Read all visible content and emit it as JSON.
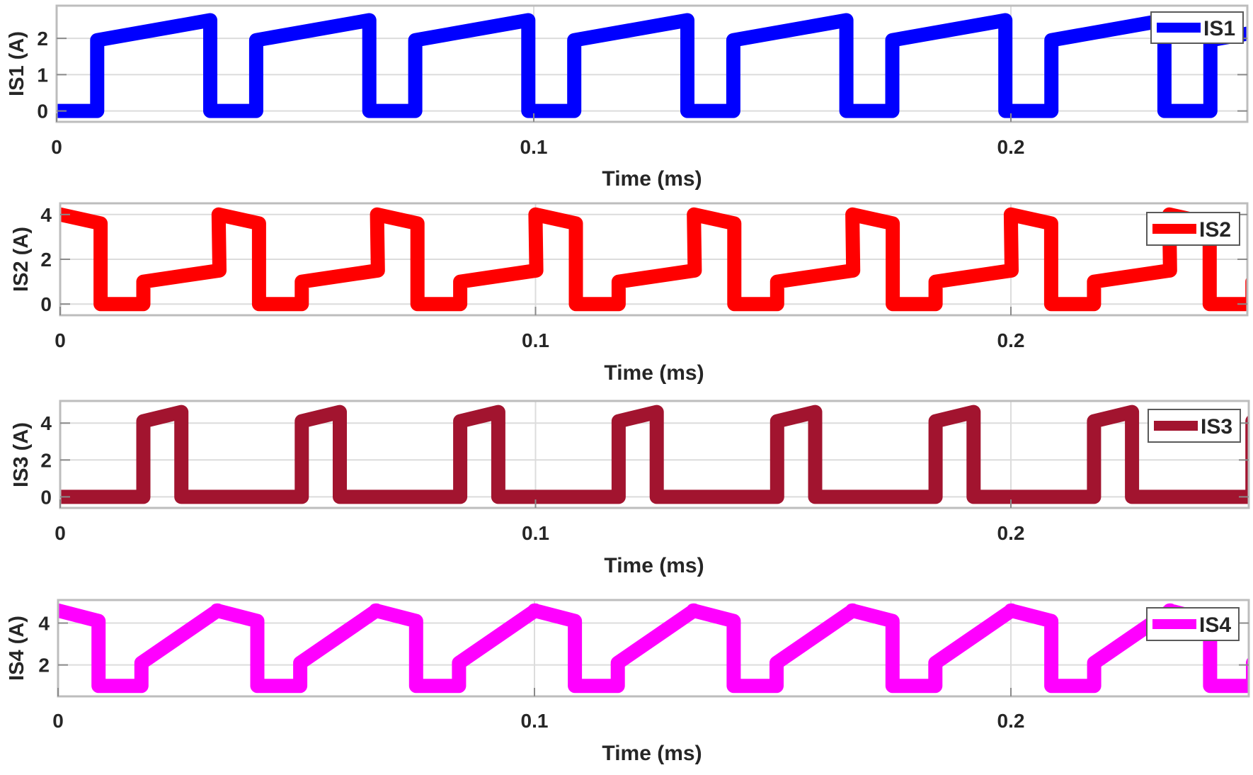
{
  "chart_data": [
    {
      "type": "line",
      "id": "is1",
      "title": "",
      "xlabel": "Time (ms)",
      "ylabel": "IS1 (A)",
      "legend": [
        "IS1"
      ],
      "legend_position": "northeast",
      "grid": true,
      "color": "#0000ff",
      "xlim": [
        0,
        0.25
      ],
      "ylim": [
        -0.3,
        2.9
      ],
      "xticks": [
        0,
        0.1,
        0.2
      ],
      "xtick_labels": [
        "0",
        "0.1",
        "0.2"
      ],
      "yticks": [
        0,
        1,
        2
      ],
      "ytick_labels": [
        "0",
        "1",
        "2"
      ],
      "period_ms": 0.03333,
      "waveform_one_period": {
        "t": [
          0,
          0.0085,
          0.0085,
          0.0322,
          0.0322,
          0.03333
        ],
        "y": [
          0,
          0,
          1.95,
          2.5,
          0,
          0
        ]
      },
      "series": [
        {
          "name": "IS1",
          "description": "Rectangular pulse: 0 A off-state, rises to ~2 A and ramps to ~2.5 A during conduction, 3 cycles per 0.1 ms"
        }
      ]
    },
    {
      "type": "line",
      "id": "is2",
      "title": "",
      "xlabel": "Time (ms)",
      "ylabel": "IS2 (A)",
      "legend": [
        "IS2"
      ],
      "legend_position": "northeast",
      "grid": true,
      "color": "#ff0000",
      "xlim": [
        0,
        0.25
      ],
      "ylim": [
        -0.5,
        4.5
      ],
      "xticks": [
        0,
        0.1,
        0.2
      ],
      "xtick_labels": [
        "0",
        "0.1",
        "0.2"
      ],
      "yticks": [
        0,
        2,
        4
      ],
      "ytick_labels": [
        "0",
        "2",
        "4"
      ],
      "period_ms": 0.03333,
      "waveform_one_period": {
        "t": [
          0,
          0.0085,
          0.0085,
          0.0175,
          0.0175,
          0.0335
        ],
        "y": [
          4.0,
          3.6,
          0,
          0,
          1.0,
          1.5
        ]
      },
      "series": [
        {
          "name": "IS2",
          "description": "Peak ~4 A falling to ~3.6 A, drops to 0, then steps to ~1 A ramping to ~1.5 A"
        }
      ]
    },
    {
      "type": "line",
      "id": "is3",
      "title": "",
      "xlabel": "Time (ms)",
      "ylabel": "IS3 (A)",
      "legend": [
        "IS3"
      ],
      "legend_position": "northeast",
      "grid": true,
      "color": "#a2142f",
      "xlim": [
        0,
        0.25
      ],
      "ylim": [
        -0.6,
        5.2
      ],
      "xticks": [
        0,
        0.1,
        0.2
      ],
      "xtick_labels": [
        "0",
        "0.1",
        "0.2"
      ],
      "yticks": [
        0,
        2,
        4
      ],
      "ytick_labels": [
        "0",
        "2",
        "4"
      ],
      "period_ms": 0.03333,
      "waveform_one_period": {
        "t": [
          0,
          0.0175,
          0.0175,
          0.0255,
          0.0255,
          0.03333
        ],
        "y": [
          0,
          0,
          4.1,
          4.6,
          0,
          0
        ]
      },
      "series": [
        {
          "name": "IS3",
          "description": "Narrow pulse ~4.1 A ramping to ~4.6 A, otherwise 0 A"
        }
      ]
    },
    {
      "type": "line",
      "id": "is4",
      "title": "",
      "xlabel": "Time (ms)",
      "ylabel": "IS4 (A)",
      "legend": [
        "IS4"
      ],
      "legend_position": "northeast",
      "grid": true,
      "color": "#ff00ff",
      "xlim": [
        0,
        0.25
      ],
      "ylim": [
        0.5,
        5.1
      ],
      "xticks": [
        0,
        0.1,
        0.2
      ],
      "xtick_labels": [
        "0",
        "0.1",
        "0.2"
      ],
      "yticks": [
        2,
        4
      ],
      "ytick_labels": [
        "2",
        "4"
      ],
      "period_ms": 0.03333,
      "waveform_one_period": {
        "t": [
          0,
          0.0085,
          0.0085,
          0.0175,
          0.0175,
          0.0335
        ],
        "y": [
          4.6,
          4.1,
          1.0,
          1.0,
          2.1,
          4.6
        ]
      },
      "series": [
        {
          "name": "IS4",
          "description": "Peak ~4.6 A falling to ~4.1 A, drops to ~1 A, steps to ~2.1 A then ramps linearly back to ~4.6 A"
        }
      ]
    }
  ],
  "panels": [
    {
      "ylabel": "IS1 (A)",
      "xlabel": "Time (ms)",
      "legend": "IS1"
    },
    {
      "ylabel": "IS2 (A)",
      "xlabel": "Time (ms)",
      "legend": "IS2"
    },
    {
      "ylabel": "IS3 (A)",
      "xlabel": "Time (ms)",
      "legend": "IS3"
    },
    {
      "ylabel": "IS4 (A)",
      "xlabel": "Time (ms)",
      "legend": "IS4"
    }
  ]
}
